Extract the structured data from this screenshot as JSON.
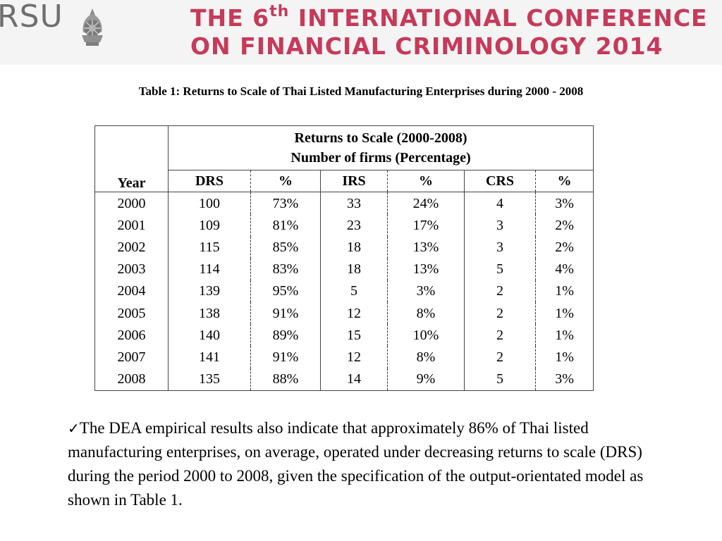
{
  "header": {
    "logo_text": "RSU",
    "title_line1_pre": "THE 6",
    "title_line1_sup": "th",
    "title_line1_post": " INTERNATIONAL CONFERENCE",
    "title_line2": "ON FINANCIAL CRIMINOLOGY 2014",
    "title_color": "#c63a5a"
  },
  "caption": "Table 1: Returns to Scale of Thai Listed Manufacturing Enterprises during 2000 - 2008",
  "table": {
    "group_header_line1": "Returns to Scale (2000-2008)",
    "group_header_line2": "Number of firms (Percentage)",
    "columns": [
      "Year",
      "DRS",
      "%",
      "IRS",
      "%",
      "CRS",
      "%"
    ],
    "rows": [
      [
        "2000",
        "100",
        "73%",
        "33",
        "24%",
        "4",
        "3%"
      ],
      [
        "2001",
        "109",
        "81%",
        "23",
        "17%",
        "3",
        "2%"
      ],
      [
        "2002",
        "115",
        "85%",
        "18",
        "13%",
        "3",
        "2%"
      ],
      [
        "2003",
        "114",
        "83%",
        "18",
        "13%",
        "5",
        "4%"
      ],
      [
        "2004",
        "139",
        "95%",
        "5",
        "3%",
        "2",
        "1%"
      ],
      [
        "2005",
        "138",
        "91%",
        "12",
        "8%",
        "2",
        "1%"
      ],
      [
        "2006",
        "140",
        "89%",
        "15",
        "10%",
        "2",
        "1%"
      ],
      [
        "2007",
        "141",
        "91%",
        "12",
        "8%",
        "2",
        "1%"
      ],
      [
        "2008",
        "135",
        "88%",
        "14",
        "9%",
        "5",
        "3%"
      ]
    ]
  },
  "paragraph": {
    "bullet": "✓",
    "text": "The DEA empirical results also indicate that approximately 86% of Thai listed manufacturing enterprises, on average, operated under decreasing returns to scale (DRS) during the period 2000 to 2008, given the specification of the output-orientated model as shown in Table 1",
    "end": "."
  }
}
